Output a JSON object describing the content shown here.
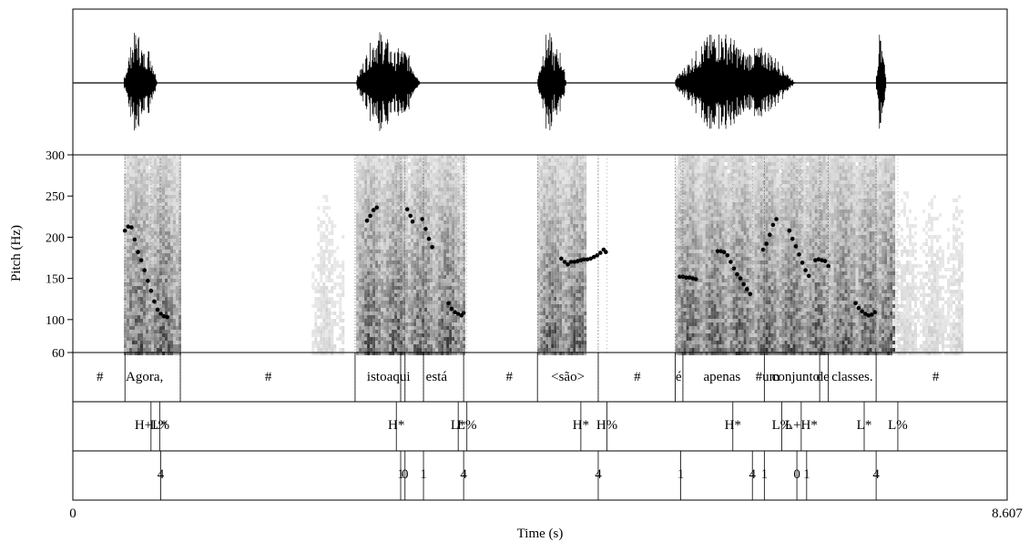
{
  "chart_data": {
    "type": "line",
    "title": "",
    "xlabel": "Time (s)",
    "ylabel": "Pitch (Hz)",
    "xlim": [
      0,
      8.607
    ],
    "ylim": [
      60,
      300
    ],
    "x_tick_labels": [
      "0",
      "8.607"
    ],
    "y_ticks": [
      60,
      100,
      150,
      200,
      250,
      300
    ],
    "grid": false,
    "panels": [
      "waveform",
      "spectrogram",
      "words-tier",
      "tones-tier",
      "break-indices-tier"
    ],
    "voiced_regions": [
      {
        "start": 0.47,
        "end": 0.99
      },
      {
        "start": 2.61,
        "end": 3.6
      },
      {
        "start": 4.28,
        "end": 4.73
      },
      {
        "start": 5.55,
        "end": 7.4
      },
      {
        "start": 7.4,
        "end": 7.56
      }
    ],
    "pitch_series": [
      {
        "values": [
          [
            0.48,
            208
          ],
          [
            0.51,
            213
          ],
          [
            0.54,
            212
          ],
          [
            0.57,
            197
          ],
          [
            0.6,
            182
          ],
          [
            0.63,
            172
          ],
          [
            0.66,
            160
          ],
          [
            0.69,
            147
          ],
          [
            0.72,
            135
          ],
          [
            0.75,
            122
          ],
          [
            0.78,
            112
          ],
          [
            0.81,
            107
          ],
          [
            0.84,
            104
          ],
          [
            0.87,
            103
          ]
        ]
      },
      {
        "values": [
          [
            2.71,
            220
          ],
          [
            2.74,
            226
          ],
          [
            2.77,
            233
          ],
          [
            2.8,
            236
          ]
        ]
      },
      {
        "values": [
          [
            3.08,
            234
          ],
          [
            3.11,
            226
          ],
          [
            3.13,
            219
          ]
        ]
      },
      {
        "values": [
          [
            3.22,
            222
          ],
          [
            3.25,
            210
          ],
          [
            3.28,
            198
          ],
          [
            3.31,
            188
          ]
        ]
      },
      {
        "values": [
          [
            3.46,
            120
          ],
          [
            3.49,
            113
          ],
          [
            3.52,
            109
          ],
          [
            3.55,
            107
          ],
          [
            3.58,
            105
          ],
          [
            3.6,
            108
          ]
        ]
      },
      {
        "values": [
          [
            4.5,
            174
          ],
          [
            4.53,
            170
          ],
          [
            4.56,
            167
          ],
          [
            4.59,
            170
          ],
          [
            4.62,
            170
          ],
          [
            4.65,
            171
          ],
          [
            4.68,
            172
          ],
          [
            4.71,
            173
          ],
          [
            4.74,
            173
          ],
          [
            4.77,
            174
          ],
          [
            4.8,
            176
          ],
          [
            4.83,
            178
          ],
          [
            4.86,
            181
          ],
          [
            4.89,
            185
          ],
          [
            4.91,
            182
          ]
        ]
      },
      {
        "values": [
          [
            5.59,
            152
          ],
          [
            5.62,
            152
          ],
          [
            5.65,
            151
          ],
          [
            5.68,
            151
          ],
          [
            5.71,
            150
          ],
          [
            5.74,
            149
          ]
        ]
      },
      {
        "values": [
          [
            5.94,
            183
          ],
          [
            5.97,
            183
          ],
          [
            6.0,
            182
          ],
          [
            6.03,
            178
          ],
          [
            6.06,
            170
          ],
          [
            6.09,
            162
          ],
          [
            6.12,
            155
          ],
          [
            6.15,
            150
          ],
          [
            6.18,
            143
          ],
          [
            6.21,
            137
          ],
          [
            6.24,
            131
          ]
        ]
      },
      {
        "values": [
          [
            6.36,
            185
          ],
          [
            6.39,
            192
          ],
          [
            6.42,
            203
          ],
          [
            6.45,
            215
          ],
          [
            6.48,
            222
          ]
        ]
      },
      {
        "values": [
          [
            6.6,
            208
          ],
          [
            6.63,
            198
          ],
          [
            6.66,
            189
          ],
          [
            6.69,
            179
          ],
          [
            6.72,
            169
          ],
          [
            6.75,
            160
          ],
          [
            6.78,
            153
          ]
        ]
      },
      {
        "values": [
          [
            6.84,
            172
          ],
          [
            6.87,
            173
          ],
          [
            6.9,
            172
          ],
          [
            6.93,
            171
          ],
          [
            6.96,
            165
          ]
        ]
      },
      {
        "values": [
          [
            7.21,
            120
          ],
          [
            7.24,
            114
          ],
          [
            7.27,
            110
          ],
          [
            7.3,
            107
          ],
          [
            7.33,
            105
          ],
          [
            7.36,
            106
          ],
          [
            7.39,
            109
          ]
        ]
      }
    ],
    "tiers": [
      {
        "name": "words",
        "boundaries": [
          0.48,
          0.99,
          2.6,
          3.02,
          3.06,
          3.23,
          3.6,
          4.28,
          4.84,
          5.55,
          5.62,
          6.37,
          6.88,
          6.96,
          7.4
        ],
        "labels": [
          {
            "t": 0.25,
            "text": "#"
          },
          {
            "t": 0.66,
            "text": "Agora,"
          },
          {
            "t": 1.8,
            "text": "#"
          },
          {
            "t": 2.8,
            "text": "isto"
          },
          {
            "t": 3.0,
            "text": "aqui"
          },
          {
            "t": 3.35,
            "text": "está"
          },
          {
            "t": 4.02,
            "text": "#"
          },
          {
            "t": 4.56,
            "text": "<são>"
          },
          {
            "t": 5.2,
            "text": "#"
          },
          {
            "t": 5.58,
            "text": "é"
          },
          {
            "t": 5.98,
            "text": "apenas"
          },
          {
            "t": 6.4,
            "text": "#um"
          },
          {
            "t": 6.66,
            "text": "conjunto"
          },
          {
            "t": 6.91,
            "text": "de"
          },
          {
            "t": 7.18,
            "text": "classes."
          },
          {
            "t": 7.95,
            "text": "#"
          }
        ]
      },
      {
        "name": "tones",
        "marks": [
          {
            "t": 0.72,
            "text": "H+L*"
          },
          {
            "t": 0.8,
            "text": "L%"
          },
          {
            "t": 2.98,
            "text": "H*"
          },
          {
            "t": 3.55,
            "text": "L*"
          },
          {
            "t": 3.63,
            "text": "L%"
          },
          {
            "t": 4.68,
            "text": "H*"
          },
          {
            "t": 4.92,
            "text": "H%"
          },
          {
            "t": 6.08,
            "text": "H*"
          },
          {
            "t": 6.53,
            "text": "L%"
          },
          {
            "t": 6.71,
            "text": "L+H*"
          },
          {
            "t": 7.29,
            "text": "L*"
          },
          {
            "t": 7.6,
            "text": "L%"
          }
        ]
      },
      {
        "name": "break indices",
        "marks": [
          {
            "t": 0.81,
            "text": "4"
          },
          {
            "t": 3.02,
            "text": "1"
          },
          {
            "t": 3.06,
            "text": "0"
          },
          {
            "t": 3.23,
            "text": "1"
          },
          {
            "t": 3.6,
            "text": "4"
          },
          {
            "t": 4.84,
            "text": "4"
          },
          {
            "t": 5.6,
            "text": "1"
          },
          {
            "t": 6.26,
            "text": "4"
          },
          {
            "t": 6.37,
            "text": "1"
          },
          {
            "t": 6.67,
            "text": "0"
          },
          {
            "t": 6.76,
            "text": "1"
          },
          {
            "t": 7.4,
            "text": "4"
          }
        ]
      }
    ]
  }
}
